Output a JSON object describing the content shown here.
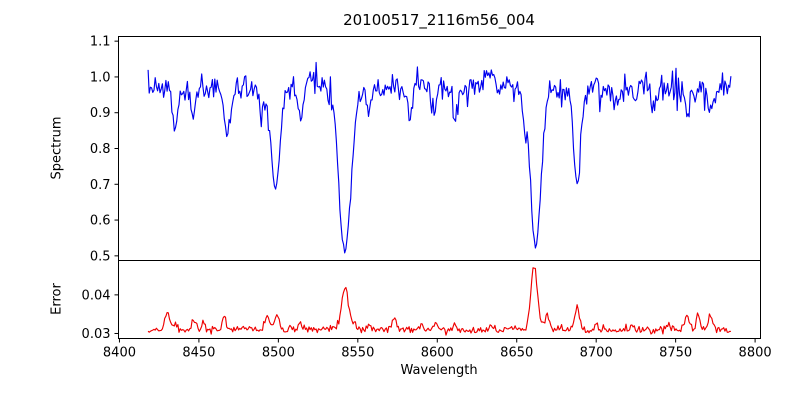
{
  "title": "20100517_2116m56_004",
  "chart_data": {
    "type": "line",
    "title": "20100517_2116m56_004",
    "xlabel": "Wavelength",
    "grid": false,
    "legend": "none",
    "xlim": [
      8399.4,
      8803.4
    ],
    "xticks": {
      "values": [
        8400,
        8450,
        8500,
        8550,
        8600,
        8650,
        8700,
        8750,
        8800
      ],
      "labels": [
        "8400",
        "8450",
        "8500",
        "8550",
        "8600",
        "8650",
        "8700",
        "8750",
        "8800"
      ]
    },
    "x_data_range": [
      8418,
      8785
    ],
    "sample_step": 0.75,
    "noise_seed": 7,
    "panels": [
      {
        "name": "spectrum",
        "ylabel": "Spectrum",
        "color": "#0000ee",
        "ylim": [
          0.487,
          1.113
        ],
        "yticks": {
          "values": [
            0.5,
            0.6,
            0.7,
            0.8,
            0.9,
            1.0,
            1.1
          ],
          "labels": [
            "0.5",
            "0.6",
            "0.7",
            "0.8",
            "0.9",
            "1.0",
            "1.1"
          ]
        },
        "model": {
          "continuum": 0.97,
          "noise_sigma": 0.018,
          "spike_prob": 0.1,
          "spike_max": 0.042,
          "absorption_lines": [
            [
              8435,
              0.855,
              1.8
            ],
            [
              8446,
              0.885,
              1.6
            ],
            [
              8468,
              0.835,
              1.8
            ],
            [
              8489,
              0.9,
              1.4
            ],
            [
              8498,
              0.69,
              2.8
            ],
            [
              8514,
              0.885,
              1.6
            ],
            [
              8542,
              0.515,
              3.8
            ],
            [
              8557,
              0.905,
              1.4
            ],
            [
              8582,
              0.9,
              1.6
            ],
            [
              8598,
              0.895,
              1.6
            ],
            [
              8611,
              0.89,
              1.6
            ],
            [
              8655,
              0.88,
              1.2
            ],
            [
              8662,
              0.53,
              3.4
            ],
            [
              8688,
              0.7,
              2.2
            ],
            [
              8713,
              0.915,
              1.6
            ],
            [
              8736,
              0.92,
              1.4
            ],
            [
              8757,
              0.9,
              1.6
            ],
            [
              8772,
              0.905,
              1.4
            ]
          ],
          "bumps": [
            [
              8520,
              0.035,
              2.5
            ],
            [
              8632,
              0.04,
              3.0
            ],
            [
              8604,
              0.015,
              3.0
            ]
          ]
        }
      },
      {
        "name": "error",
        "ylabel": "Error",
        "color": "#ee0000",
        "ylim": [
          0.0287,
          0.0489
        ],
        "yticks": {
          "values": [
            0.03,
            0.04
          ],
          "labels": [
            "0.03",
            "0.04"
          ]
        },
        "model": {
          "baseline": 0.031,
          "noise_sigma": 0.00045,
          "peaks": [
            [
              8430,
              0.0042,
              1.4
            ],
            [
              8435,
              0.0015,
              1.0
            ],
            [
              8447,
              0.0028,
              1.2
            ],
            [
              8453,
              0.0018,
              1.0
            ],
            [
              8466,
              0.003,
              1.4
            ],
            [
              8493,
              0.0032,
              1.4
            ],
            [
              8499,
              0.0038,
              1.4
            ],
            [
              8514,
              0.0018,
              1.2
            ],
            [
              8542,
              0.0108,
              2.2
            ],
            [
              8548,
              0.002,
              1.2
            ],
            [
              8557,
              0.0015,
              1.0
            ],
            [
              8573,
              0.0032,
              1.2
            ],
            [
              8590,
              0.0015,
              1.0
            ],
            [
              8599,
              0.0018,
              1.2
            ],
            [
              8611,
              0.0015,
              1.0
            ],
            [
              8634,
              0.0012,
              1.0
            ],
            [
              8661,
              0.0168,
              2.0
            ],
            [
              8669,
              0.0035,
              1.5
            ],
            [
              8688,
              0.0058,
              1.5
            ],
            [
              8700,
              0.0012,
              1.0
            ],
            [
              8722,
              0.001,
              1.0
            ],
            [
              8745,
              0.0012,
              1.0
            ],
            [
              8757,
              0.0042,
              1.3
            ],
            [
              8764,
              0.0046,
              1.1
            ],
            [
              8772,
              0.004,
              1.2
            ]
          ]
        }
      }
    ]
  }
}
